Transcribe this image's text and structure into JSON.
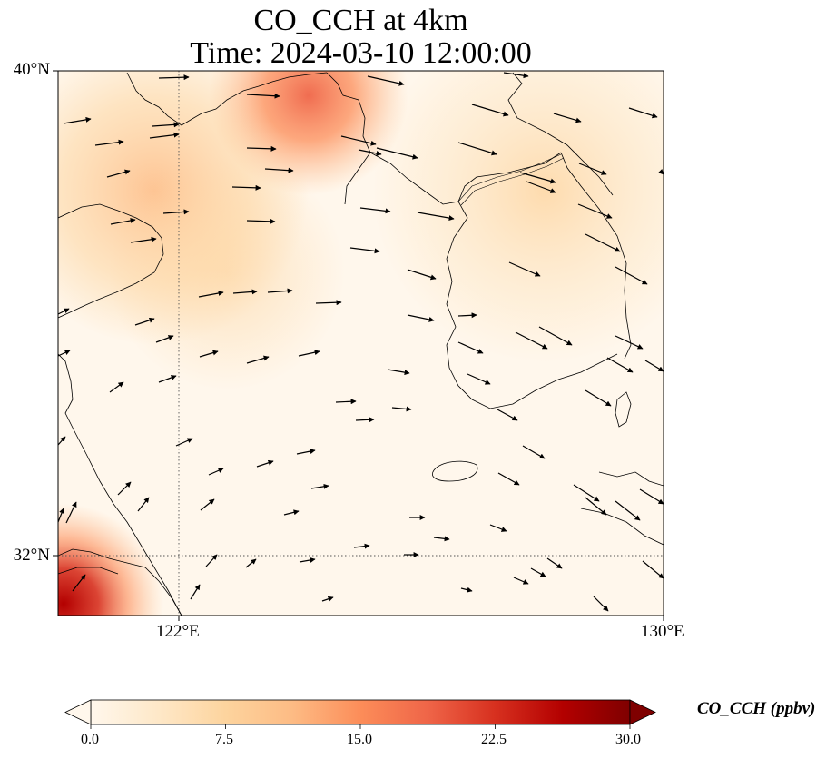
{
  "title_line1": "CO_CCH at 4km",
  "title_line2": "Time: 2024-03-10 12:00:00",
  "lat_labels": [
    "40°N",
    "32°N"
  ],
  "lon_labels": [
    "122°E",
    "130°E"
  ],
  "colorbar": {
    "label": "CO_CCH (ppbv)",
    "ticks": [
      "0.0",
      "7.5",
      "15.0",
      "22.5",
      "30.0"
    ],
    "min": 0,
    "max": 30,
    "colors": [
      "#fff7ec",
      "#fee8c8",
      "#fdd49e",
      "#fdbb84",
      "#fc8d59",
      "#ef6548",
      "#d7301f",
      "#b30000",
      "#7f0000"
    ]
  }
}
